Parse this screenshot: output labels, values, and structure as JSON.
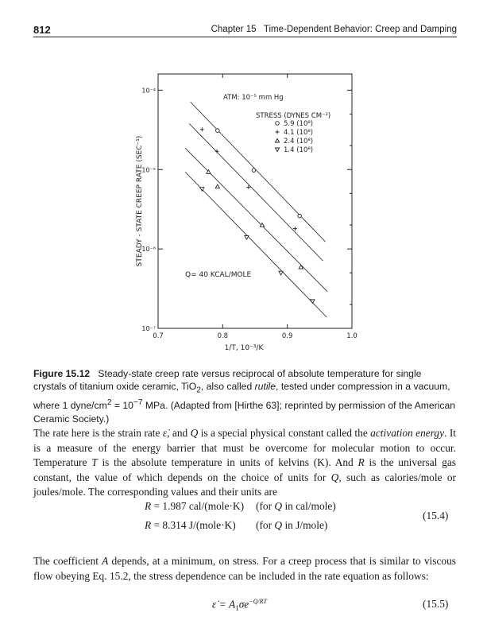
{
  "header": {
    "page_number": "812",
    "chapter_title": "Chapter 15   Time-Dependent Behavior: Creep and Damping"
  },
  "chart_data": {
    "type": "scatter",
    "xlabel": "1/T, 10⁻³/K",
    "ylabel": "STEADY - STATE CREEP RATE (SEC⁻¹)",
    "xlim": [
      0.7,
      1.0
    ],
    "ylim": [
      1e-07,
      0.00016
    ],
    "yscale": "log",
    "x_ticks": [
      "0.7",
      "0.8",
      "0.9",
      "1.0"
    ],
    "x_tick_values": [
      0.7,
      0.8,
      0.9,
      1.0
    ],
    "y_ticks": [
      "10⁻⁴",
      "10⁻⁵",
      "10⁻⁶",
      "10⁻⁷"
    ],
    "y_tick_values": [
      0.0001,
      1e-05,
      1e-06,
      1e-07
    ],
    "annotations": {
      "atmosphere": "ATM: 10⁻⁵ mm Hg",
      "activation": "Q= 40 KCAL/MOLE"
    },
    "legend_title": "STRESS (DYNES CM⁻²)",
    "legend_placement": "top-right",
    "grid": false,
    "series": [
      {
        "name": "5.9 (10⁸)",
        "marker": "circle",
        "x": [
          0.792,
          0.848,
          0.919
        ],
        "y": [
          3.1e-05,
          9.8e-06,
          2.6e-06
        ],
        "fit": {
          "x": [
            0.75,
            0.959
          ],
          "y": [
            7.1e-05,
            1.23e-06
          ]
        }
      },
      {
        "name": "4.1 (10⁸)",
        "marker": "plus",
        "x": [
          0.768,
          0.791,
          0.84,
          0.912
        ],
        "y": [
          3.2e-05,
          1.7e-05,
          6e-06,
          1.8e-06
        ],
        "fit": {
          "x": [
            0.748,
            0.955
          ],
          "y": [
            3.8e-05,
            7.1e-07
          ]
        }
      },
      {
        "name": "2.4 (10⁸)",
        "marker": "triangle-up",
        "x": [
          0.778,
          0.792,
          0.861,
          0.921
        ],
        "y": [
          9.3e-06,
          6.1e-06,
          2e-06,
          5.9e-07
        ],
        "fit": {
          "x": [
            0.742,
            0.962
          ],
          "y": [
            1.86e-05,
            2.9e-07
          ]
        }
      },
      {
        "name": "1.4 (10⁸)",
        "marker": "triangle-down",
        "x": [
          0.768,
          0.837,
          0.89,
          0.939
        ],
        "y": [
          5.7e-06,
          1.4e-06,
          5e-07,
          2.2e-07
        ],
        "fit": {
          "x": [
            0.742,
            0.961
          ],
          "y": [
            9.3e-06,
            1.38e-07
          ]
        }
      }
    ]
  },
  "caption": {
    "label": "Figure 15.12",
    "t1": "Steady-state creep rate versus reciprocal of absolute temperature for single crystals of titanium oxide ceramic, TiO",
    "sub2": "2",
    "t2": ", also called ",
    "rutile": "rutile",
    "t3": ", tested under compression in a vacuum, where 1 dyne/cm",
    "sup2": "2",
    "t4": " = 10",
    "supm7": "−7",
    "t5": " MPa. (Adapted from [Hirthe 63]; reprinted by permission of the American Ceramic Society.)"
  },
  "para1": {
    "a": "The rate here is the strain rate ",
    "edot": "ε̇",
    "b": ", and ",
    "Q": "Q",
    "c": " is a special physical constant called the ",
    "term": "activation energy",
    "d": ". It is a measure of the energy barrier that must be overcome for molecular motion to occur. Temperature ",
    "T": "T",
    "e": " is the absolute temperature in units of kelvins (K). And ",
    "R": "R",
    "f": " is the universal gas constant, the value of which depends on the choice of units for ",
    "Q2": "Q",
    "g": ", such as calories/mole or joules/mole. The corresponding values and their units are"
  },
  "eq154": {
    "line1_lhs": "R",
    "line1_rhs": " = 1.987 cal/(mole·K)",
    "line1_note_a": "(for ",
    "line1_note_q": "Q",
    "line1_note_b": " in cal/mole)",
    "line2_lhs": "R",
    "line2_rhs": " = 8.314 J/(mole·K)",
    "line2_note_a": "(for ",
    "line2_note_q": "Q",
    "line2_note_b": " in J/mole)",
    "number": "(15.4)"
  },
  "para2": {
    "a": "The coefficient ",
    "A": "A",
    "b": " depends, at a minimum, on stress. For a creep process that is similar to viscous flow obeying Eq. 15.2, the stress dependence can be included in the rate equation as follows:"
  },
  "eq155": {
    "lhs": "ε̇ = A",
    "sub": "1",
    "sigma": "σe",
    "exp": "−Q/RT",
    "number": "(15.5)"
  }
}
